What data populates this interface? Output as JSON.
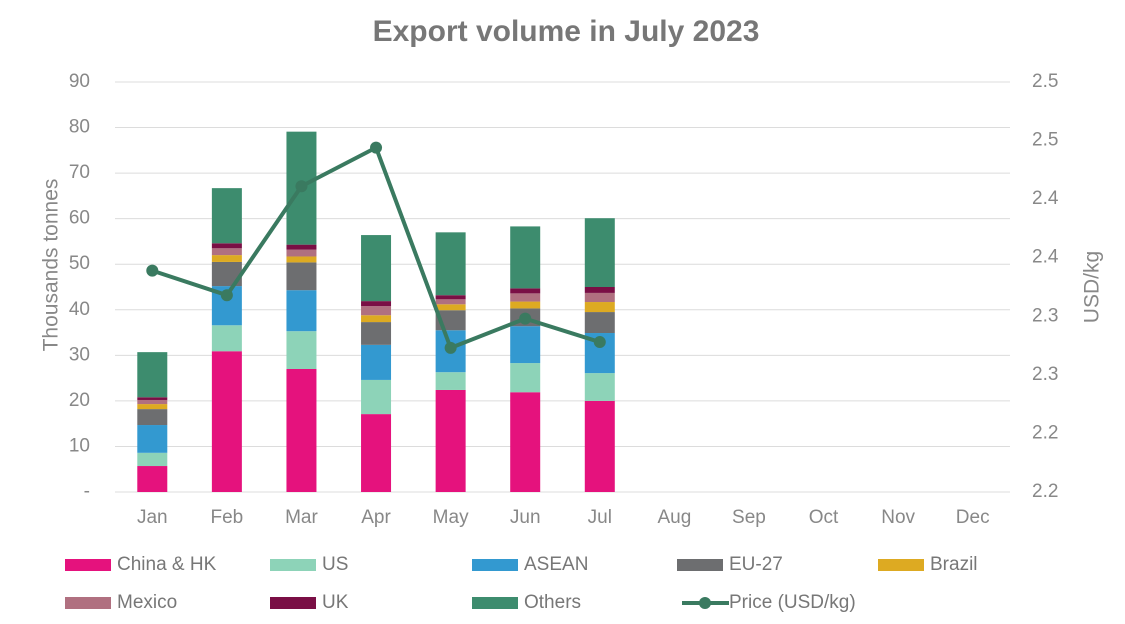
{
  "chart_data": {
    "type": "bar",
    "stacked": true,
    "title": "Export volume in July 2023",
    "y_label": "Thousands tonnes",
    "y2_label": "USD/kg",
    "categories": [
      "Jan",
      "Feb",
      "Mar",
      "Apr",
      "May",
      "Jun",
      "Jul",
      "Aug",
      "Sep",
      "Oct",
      "Nov",
      "Dec"
    ],
    "ylim": [
      0,
      90
    ],
    "yticks": [
      {
        "value": 0,
        "label": "-"
      },
      10,
      20,
      30,
      40,
      50,
      60,
      70,
      80,
      90
    ],
    "y2lim": [
      2.15,
      2.5
    ],
    "y2ticks": [
      {
        "value": 2.15,
        "label": "2.2"
      },
      {
        "value": 2.2,
        "label": "2.2"
      },
      {
        "value": 2.25,
        "label": "2.3"
      },
      {
        "value": 2.3,
        "label": "2.3"
      },
      {
        "value": 2.35,
        "label": "2.4"
      },
      {
        "value": 2.4,
        "label": "2.4"
      },
      {
        "value": 2.45,
        "label": "2.5"
      },
      {
        "value": 2.5,
        "label": "2.5"
      }
    ],
    "grid": true,
    "legend": "bottom",
    "series": [
      {
        "name": "China & HK",
        "color": "#e5127d",
        "values": [
          5.7,
          30.9,
          27.0,
          17.1,
          22.4,
          21.9,
          20.0,
          null,
          null,
          null,
          null,
          null
        ]
      },
      {
        "name": "US",
        "color": "#8dd3b8",
        "values": [
          2.9,
          5.7,
          8.3,
          7.5,
          3.9,
          6.4,
          6.1,
          null,
          null,
          null,
          null,
          null
        ]
      },
      {
        "name": "ASEAN",
        "color": "#3399d0",
        "values": [
          6.1,
          8.6,
          9.0,
          7.7,
          9.2,
          8.1,
          8.8,
          null,
          null,
          null,
          null,
          null
        ]
      },
      {
        "name": "EU-27",
        "color": "#6d6e70",
        "values": [
          3.5,
          5.3,
          6.1,
          5.0,
          4.4,
          3.9,
          4.6,
          null,
          null,
          null,
          null,
          null
        ]
      },
      {
        "name": "Brazil",
        "color": "#ddaa22",
        "values": [
          1.1,
          1.5,
          1.3,
          1.5,
          1.3,
          1.5,
          2.2,
          null,
          null,
          null,
          null,
          null
        ]
      },
      {
        "name": "Mexico",
        "color": "#b07080",
        "values": [
          0.9,
          1.5,
          1.5,
          2.0,
          1.1,
          1.8,
          2.0,
          null,
          null,
          null,
          null,
          null
        ]
      },
      {
        "name": "UK",
        "color": "#7a0f45",
        "values": [
          0.6,
          1.1,
          1.1,
          1.1,
          0.9,
          1.1,
          1.3,
          null,
          null,
          null,
          null,
          null
        ]
      },
      {
        "name": "Others",
        "color": "#3d8c6e",
        "values": [
          9.9,
          12.1,
          24.8,
          14.5,
          13.8,
          13.6,
          15.1,
          null,
          null,
          null,
          null,
          null
        ]
      },
      {
        "name": "Price (USD/kg)",
        "color": "#3a7a60",
        "type": "line",
        "axis": "y2",
        "values": [
          2.339,
          2.318,
          2.411,
          2.444,
          2.273,
          2.298,
          2.278,
          null,
          null,
          null,
          null,
          null
        ]
      }
    ]
  }
}
